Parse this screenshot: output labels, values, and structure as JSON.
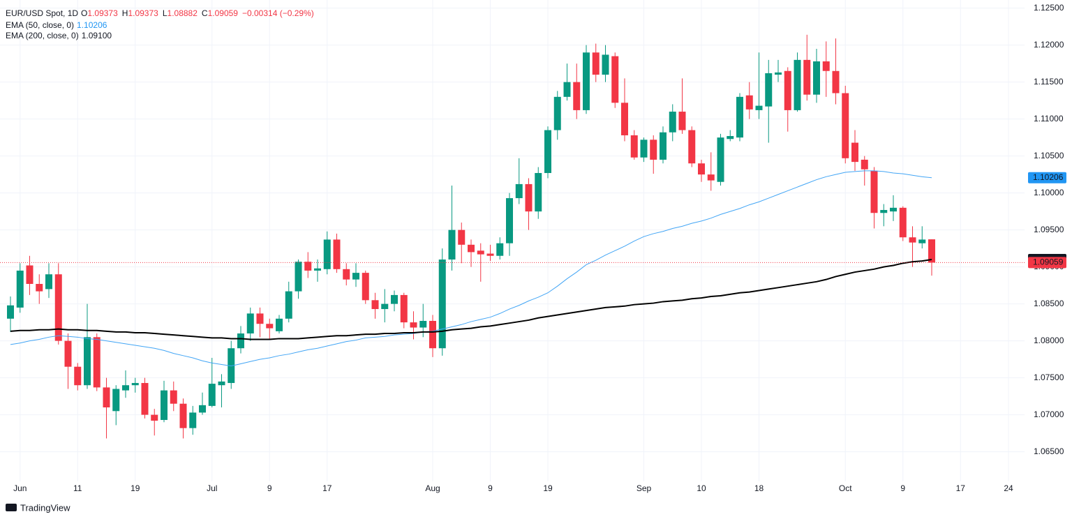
{
  "chart_data": {
    "type": "candlestick",
    "header": {
      "symbol": "EUR/USD Spot, 1D",
      "ohlc": [
        {
          "key": "O",
          "value": "1.09373"
        },
        {
          "key": "H",
          "value": "1.09373"
        },
        {
          "key": "L",
          "value": "1.08882"
        },
        {
          "key": "C",
          "value": "1.09059"
        }
      ],
      "change": "−0.00314 (−0.29%)"
    },
    "watermark": "TradingView",
    "up_color": "#089981",
    "down_color": "#f23645",
    "categories": [
      null,
      "Jun",
      null,
      null,
      null,
      null,
      null,
      "11",
      null,
      null,
      null,
      null,
      null,
      "19",
      null,
      null,
      null,
      null,
      null,
      null,
      null,
      "Jul",
      null,
      null,
      null,
      null,
      null,
      "9",
      null,
      null,
      null,
      null,
      null,
      "17",
      null,
      null,
      null,
      null,
      null,
      null,
      null,
      null,
      null,
      null,
      "Aug",
      null,
      null,
      null,
      null,
      null,
      "9",
      null,
      null,
      null,
      null,
      null,
      "19",
      null,
      null,
      null,
      null,
      null,
      null,
      null,
      null,
      null,
      "Sep",
      null,
      null,
      null,
      null,
      null,
      "10",
      null,
      null,
      null,
      null,
      null,
      "18",
      null,
      null,
      null,
      null,
      null,
      null,
      null,
      null,
      "Oct",
      null,
      null,
      null,
      null,
      null,
      "9",
      null,
      null,
      null,
      null,
      null,
      "17",
      null,
      null,
      null,
      null,
      "24"
    ],
    "open": [
      1.083,
      1.0845,
      1.0902,
      1.0877,
      1.087,
      1.089,
      1.08,
      1.0765,
      1.074,
      1.0805,
      1.0737,
      1.0705,
      1.0733,
      1.074,
      1.0743,
      1.07,
      1.0693,
      1.0733,
      1.0715,
      1.0682,
      1.0703,
      1.0712,
      1.074,
      1.0743,
      1.079,
      1.081,
      1.0837,
      1.0823,
      1.0813,
      1.083,
      1.0867,
      1.0907,
      1.0895,
      1.0897,
      1.0937,
      1.0897,
      1.0883,
      1.0892,
      1.0855,
      1.0843,
      1.085,
      1.0862,
      1.0825,
      1.0818,
      1.0827,
      1.079,
      1.091,
      1.095,
      1.093,
      1.0922,
      1.0918,
      1.0915,
      1.0932,
      1.0993,
      1.1012,
      1.0975,
      1.1027,
      1.1085,
      1.113,
      1.115,
      1.1112,
      1.119,
      1.116,
      1.1185,
      1.1122,
      1.1078,
      1.1048,
      1.1072,
      1.1045,
      1.1082,
      1.111,
      1.1085,
      1.104,
      1.1025,
      1.1015,
      1.1073,
      1.1075,
      1.1132,
      1.1112,
      1.1117,
      1.116,
      1.1165,
      1.1112,
      1.118,
      1.1133,
      1.1178,
      1.1165,
      1.1135,
      1.1068,
      1.1045,
      1.103,
      1.0973,
      1.0975,
      1.098,
      1.094,
      1.0932,
      1.09373,
      null,
      null,
      null,
      null,
      null,
      null,
      null,
      null
    ],
    "high": [
      1.086,
      1.0905,
      1.0915,
      1.089,
      1.0905,
      1.0905,
      1.081,
      1.077,
      1.085,
      1.081,
      1.075,
      1.074,
      1.076,
      1.075,
      1.075,
      1.0708,
      1.0746,
      1.0745,
      1.0722,
      1.0712,
      1.073,
      1.0777,
      1.0755,
      1.08,
      1.082,
      1.0845,
      1.0845,
      1.083,
      1.0835,
      1.088,
      1.091,
      1.092,
      1.091,
      1.0948,
      1.0945,
      1.0905,
      1.0905,
      1.0895,
      1.0865,
      1.087,
      1.0868,
      1.0865,
      1.084,
      1.085,
      1.0835,
      1.0925,
      1.101,
      1.096,
      1.0937,
      1.0932,
      1.093,
      1.094,
      1.1,
      1.1047,
      1.102,
      1.1035,
      1.109,
      1.1138,
      1.1175,
      1.1175,
      1.12,
      1.1202,
      1.12,
      1.119,
      1.1155,
      1.1085,
      1.1075,
      1.1078,
      1.109,
      1.112,
      1.1155,
      1.109,
      1.1045,
      1.1055,
      1.108,
      1.1085,
      1.1135,
      1.115,
      1.119,
      1.118,
      1.118,
      1.117,
      1.119,
      1.1214,
      1.1195,
      1.1205,
      1.1209,
      1.1145,
      1.1085,
      1.105,
      1.1035,
      1.0985,
      1.0997,
      1.0982,
      1.0955,
      1.0955,
      1.09373,
      null,
      null,
      null,
      null,
      null,
      null,
      null,
      null
    ],
    "low": [
      1.0812,
      1.0838,
      1.0862,
      1.085,
      1.0858,
      1.0795,
      1.0735,
      1.0733,
      1.0735,
      1.0732,
      1.0668,
      1.0686,
      1.0723,
      1.073,
      1.0695,
      1.0672,
      1.069,
      1.0705,
      1.0668,
      1.0673,
      1.07,
      1.071,
      1.071,
      1.0735,
      1.0783,
      1.08,
      1.0805,
      1.0803,
      1.081,
      1.0825,
      1.0857,
      1.0885,
      1.088,
      1.089,
      1.0892,
      1.0875,
      1.0873,
      1.085,
      1.083,
      1.0825,
      1.084,
      1.0817,
      1.0802,
      1.0805,
      1.0778,
      1.078,
      1.0895,
      1.0905,
      1.09,
      1.088,
      1.0908,
      1.091,
      1.0915,
      1.0985,
      1.095,
      1.0965,
      1.102,
      1.1072,
      1.1125,
      1.11,
      1.1107,
      1.115,
      1.115,
      1.1115,
      1.107,
      1.1045,
      1.1042,
      1.1026,
      1.104,
      1.107,
      1.108,
      1.1035,
      1.1015,
      1.1003,
      1.101,
      1.107,
      1.107,
      1.11,
      1.11,
      1.1068,
      1.115,
      1.1083,
      1.111,
      1.1125,
      1.1122,
      1.113,
      1.112,
      1.104,
      1.103,
      1.101,
      1.0952,
      1.0955,
      1.0962,
      1.0935,
      1.09,
      1.0925,
      1.08882,
      null,
      null,
      null,
      null,
      null,
      null,
      null,
      null
    ],
    "close": [
      1.0848,
      1.0895,
      1.0877,
      1.0867,
      1.089,
      1.08,
      1.0765,
      1.074,
      1.0805,
      1.0737,
      1.071,
      1.0735,
      1.074,
      1.0743,
      1.07,
      1.0692,
      1.0733,
      1.0715,
      1.0682,
      1.0703,
      1.0713,
      1.0742,
      1.0745,
      1.079,
      1.081,
      1.0837,
      1.0823,
      1.0817,
      1.083,
      1.0867,
      1.0907,
      1.0895,
      1.0898,
      1.0937,
      1.0897,
      1.0883,
      1.0892,
      1.0855,
      1.0843,
      1.085,
      1.0862,
      1.0825,
      1.0818,
      1.0827,
      1.079,
      1.091,
      1.095,
      1.093,
      1.092,
      1.0917,
      1.0915,
      1.0932,
      1.0993,
      1.1012,
      1.0975,
      1.1027,
      1.1085,
      1.113,
      1.115,
      1.1112,
      1.119,
      1.116,
      1.1187,
      1.1122,
      1.1078,
      1.1048,
      1.1072,
      1.1045,
      1.1082,
      1.111,
      1.1085,
      1.104,
      1.1025,
      1.1017,
      1.1075,
      1.1077,
      1.113,
      1.1113,
      1.1118,
      1.1162,
      1.1163,
      1.1112,
      1.118,
      1.1133,
      1.1178,
      1.1165,
      1.1135,
      1.1047,
      1.1042,
      1.1032,
      1.0973,
      1.0977,
      1.098,
      1.094,
      1.0933,
      1.0937,
      1.09059,
      null,
      null,
      null,
      null,
      null,
      null,
      null,
      null
    ],
    "close_label": "1.09059",
    "series": [
      {
        "name": "EMA (50, close, 0)",
        "color": "#42a5f5",
        "width": 1,
        "last_label": "1.10206",
        "values": [
          1.0795,
          1.0797,
          1.08,
          1.0802,
          1.0805,
          1.0807,
          1.0806,
          1.0805,
          1.0803,
          1.0802,
          1.08,
          1.0798,
          1.0796,
          1.0794,
          1.0792,
          1.079,
          1.0787,
          1.0783,
          1.078,
          1.0777,
          1.0773,
          1.077,
          1.0768,
          1.0766,
          1.0769,
          1.0772,
          1.0775,
          1.0777,
          1.078,
          1.0782,
          1.0785,
          1.0788,
          1.079,
          1.0793,
          1.0796,
          1.0799,
          1.0801,
          1.0804,
          1.0805,
          1.0806,
          1.0808,
          1.0809,
          1.081,
          1.0812,
          1.0813,
          1.0816,
          1.0819,
          1.0822,
          1.0826,
          1.0829,
          1.0832,
          1.0837,
          1.0843,
          1.0848,
          1.0854,
          1.0859,
          1.0865,
          1.0874,
          1.0884,
          1.0893,
          1.0903,
          1.0909,
          1.0916,
          1.0922,
          1.0928,
          1.0935,
          1.0941,
          1.0945,
          1.0948,
          1.0952,
          1.0955,
          1.0959,
          1.0962,
          1.0966,
          1.0971,
          1.0975,
          1.0979,
          1.0984,
          1.0988,
          1.0993,
          1.0998,
          1.1003,
          1.1008,
          1.1013,
          1.1018,
          1.1022,
          1.1025,
          1.1028,
          1.1029,
          1.103,
          1.103,
          1.1029,
          1.1027,
          1.1026,
          1.1024,
          1.1022,
          1.10206,
          null,
          null,
          null,
          null,
          null,
          null,
          null,
          null
        ]
      },
      {
        "name": "EMA (200, close, 0)",
        "color": "#000000",
        "width": 2,
        "last_label": "1.09100",
        "values": [
          1.0813,
          1.0814,
          1.0814,
          1.0815,
          1.0815,
          1.0816,
          1.0815,
          1.0815,
          1.0814,
          1.0814,
          1.0813,
          1.0812,
          1.0812,
          1.0811,
          1.0811,
          1.081,
          1.0809,
          1.0808,
          1.0807,
          1.0806,
          1.0805,
          1.0804,
          1.0804,
          1.0803,
          1.0803,
          1.0802,
          1.0802,
          1.0802,
          1.0803,
          1.0803,
          1.0803,
          1.0804,
          1.0805,
          1.0806,
          1.0807,
          1.0807,
          1.0808,
          1.0809,
          1.0809,
          1.081,
          1.081,
          1.0811,
          1.0811,
          1.0812,
          1.0812,
          1.0813,
          1.0815,
          1.0816,
          1.0817,
          1.0819,
          1.082,
          1.0822,
          1.0824,
          1.0826,
          1.0828,
          1.0831,
          1.0833,
          1.0835,
          1.0837,
          1.0839,
          1.0841,
          1.0843,
          1.0845,
          1.0846,
          1.0847,
          1.0849,
          1.085,
          1.0851,
          1.0853,
          1.0854,
          1.0855,
          1.0857,
          1.0858,
          1.086,
          1.0861,
          1.0863,
          1.0865,
          1.0866,
          1.0868,
          1.087,
          1.0872,
          1.0874,
          1.0876,
          1.0878,
          1.088,
          1.0883,
          1.0887,
          1.089,
          1.0893,
          1.0895,
          1.0897,
          1.09,
          1.0902,
          1.0905,
          1.0907,
          1.0908,
          1.091,
          null,
          null,
          null,
          null,
          null,
          null,
          null,
          null
        ]
      }
    ],
    "ylim": [
      1.061,
      1.1261
    ],
    "yticks": [
      {
        "value": 1.065,
        "label": "1.06500"
      },
      {
        "value": 1.07,
        "label": "1.07000"
      },
      {
        "value": 1.075,
        "label": "1.07500"
      },
      {
        "value": 1.08,
        "label": "1.08000"
      },
      {
        "value": 1.085,
        "label": "1.08500"
      },
      {
        "value": 1.09,
        "label": "1.09000"
      },
      {
        "value": 1.095,
        "label": "1.09500"
      },
      {
        "value": 1.1,
        "label": "1.10000"
      },
      {
        "value": 1.105,
        "label": "1.10500"
      },
      {
        "value": 1.11,
        "label": "1.11000"
      },
      {
        "value": 1.115,
        "label": "1.11500"
      },
      {
        "value": 1.12,
        "label": "1.12000"
      },
      {
        "value": 1.125,
        "label": "1.12500"
      }
    ],
    "grid": true
  }
}
